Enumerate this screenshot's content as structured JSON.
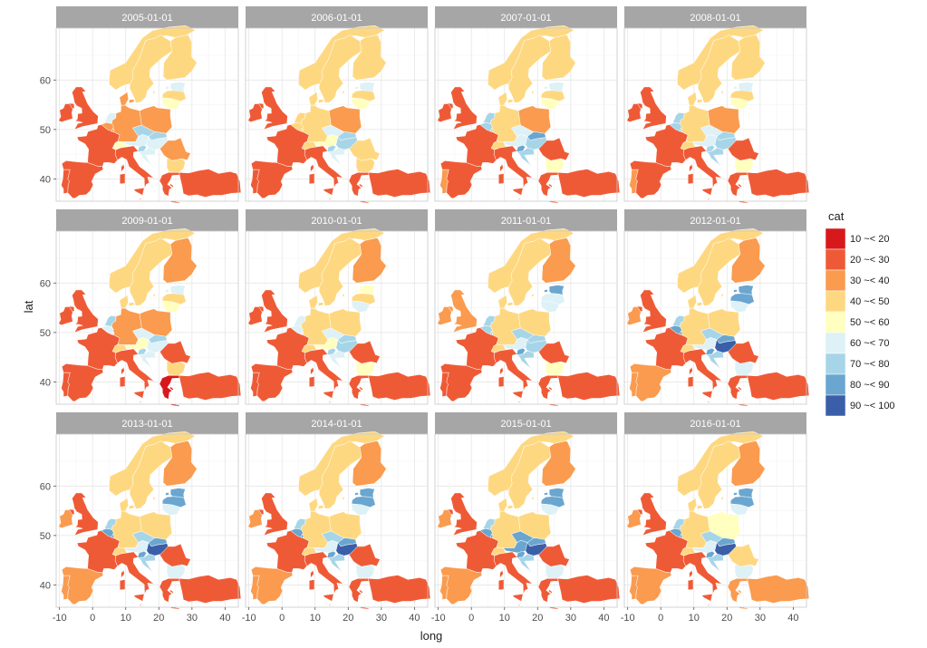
{
  "chart_data": {
    "type": "choropleth-facet",
    "xlabel": "long",
    "ylabel": "lat",
    "x_ticks": [
      -10,
      0,
      10,
      20,
      30,
      40
    ],
    "y_ticks": [
      40,
      50,
      60
    ],
    "xlim": [
      -11,
      44
    ],
    "ylim": [
      35.5,
      70.5
    ],
    "legend": {
      "title": "cat",
      "placement": "right",
      "items": [
        {
          "label": "10 ~< 20",
          "color": "#d7191c"
        },
        {
          "label": "20 ~< 30",
          "color": "#ef5a36"
        },
        {
          "label": "30 ~< 40",
          "color": "#fa9b4f"
        },
        {
          "label": "40 ~< 50",
          "color": "#fed881"
        },
        {
          "label": "50 ~< 60",
          "color": "#ffffbf"
        },
        {
          "label": "60 ~< 70",
          "color": "#ddf1f7"
        },
        {
          "label": "70 ~< 80",
          "color": "#a6d5e8"
        },
        {
          "label": "80 ~< 90",
          "color": "#6aa6cf"
        },
        {
          "label": "90 ~< 100",
          "color": "#3a5fa8"
        }
      ]
    },
    "countries": [
      "UK",
      "IE",
      "PT",
      "ES",
      "FR",
      "BE",
      "NL",
      "LU",
      "DE",
      "CH",
      "AT",
      "IT",
      "SI",
      "HR",
      "CZ",
      "SK",
      "HU",
      "PL",
      "DK",
      "NO",
      "SE",
      "FI",
      "EE",
      "LV",
      "LT",
      "RO",
      "BG",
      "GR",
      "TR",
      "MT"
    ],
    "panels": [
      {
        "label": "2005-01-01",
        "cat": {
          "UK": "20 ~< 30",
          "IE": "20 ~< 30",
          "PT": "20 ~< 30",
          "ES": "20 ~< 30",
          "FR": "20 ~< 30",
          "BE": "30 ~< 40",
          "NL": "60 ~< 70",
          "LU": "30 ~< 40",
          "DE": "30 ~< 40",
          "CH": "50 ~< 60",
          "AT": "60 ~< 70",
          "IT": "20 ~< 30",
          "SI": "70 ~< 80",
          "HR": "60 ~< 70",
          "CZ": "70 ~< 80",
          "SK": "70 ~< 80",
          "HU": "60 ~< 70",
          "PL": "30 ~< 40",
          "DK": "30 ~< 40",
          "NO": "40 ~< 50",
          "SE": "40 ~< 50",
          "FI": "40 ~< 50",
          "EE": "60 ~< 70",
          "LV": "40 ~< 50",
          "LT": "50 ~< 60",
          "RO": "30 ~< 40",
          "BG": "40 ~< 50",
          "GR": "20 ~< 30",
          "TR": "20 ~< 30",
          "MT": "20 ~< 30"
        }
      },
      {
        "label": "2006-01-01",
        "cat": {
          "UK": "20 ~< 30",
          "IE": "20 ~< 30",
          "PT": "20 ~< 30",
          "ES": "20 ~< 30",
          "FR": "20 ~< 30",
          "BE": "40 ~< 50",
          "NL": "40 ~< 50",
          "LU": "40 ~< 50",
          "DE": "40 ~< 50",
          "CH": "40 ~< 50",
          "AT": "50 ~< 60",
          "IT": "20 ~< 30",
          "SI": "70 ~< 80",
          "HR": "60 ~< 70",
          "CZ": "60 ~< 70",
          "SK": "70 ~< 80",
          "HU": "70 ~< 80",
          "PL": "30 ~< 40",
          "DK": "40 ~< 50",
          "NO": "40 ~< 50",
          "SE": "40 ~< 50",
          "FI": "40 ~< 50",
          "EE": "60 ~< 70",
          "LV": "40 ~< 50",
          "LT": "50 ~< 60",
          "RO": "40 ~< 50",
          "BG": "40 ~< 50",
          "GR": "20 ~< 30",
          "TR": "20 ~< 30",
          "MT": "20 ~< 30"
        }
      },
      {
        "label": "2007-01-01",
        "cat": {
          "UK": "20 ~< 30",
          "IE": "20 ~< 30",
          "PT": "30 ~< 40",
          "ES": "20 ~< 30",
          "FR": "20 ~< 30",
          "BE": "70 ~< 80",
          "NL": "70 ~< 80",
          "LU": "70 ~< 80",
          "DE": "40 ~< 50",
          "CH": "40 ~< 50",
          "AT": "60 ~< 70",
          "IT": "20 ~< 30",
          "SI": "80 ~< 90",
          "HR": "70 ~< 80",
          "CZ": "60 ~< 70",
          "SK": "80 ~< 90",
          "HU": "70 ~< 80",
          "PL": "30 ~< 40",
          "DK": "40 ~< 50",
          "NO": "40 ~< 50",
          "SE": "40 ~< 50",
          "FI": "40 ~< 50",
          "EE": "60 ~< 70",
          "LV": "40 ~< 50",
          "LT": "50 ~< 60",
          "RO": "20 ~< 30",
          "BG": "50 ~< 60",
          "GR": "20 ~< 30",
          "TR": "20 ~< 30",
          "MT": "20 ~< 30"
        }
      },
      {
        "label": "2008-01-01",
        "cat": {
          "UK": "20 ~< 30",
          "IE": "20 ~< 30",
          "PT": "30 ~< 40",
          "ES": "20 ~< 30",
          "FR": "20 ~< 30",
          "BE": "70 ~< 80",
          "NL": "70 ~< 80",
          "LU": "70 ~< 80",
          "DE": "40 ~< 50",
          "CH": "40 ~< 50",
          "AT": "60 ~< 70",
          "IT": "20 ~< 30",
          "SI": "70 ~< 80",
          "HR": "70 ~< 80",
          "CZ": "60 ~< 70",
          "SK": "70 ~< 80",
          "HU": "70 ~< 80",
          "PL": "30 ~< 40",
          "DK": "40 ~< 50",
          "NO": "40 ~< 50",
          "SE": "40 ~< 50",
          "FI": "40 ~< 50",
          "EE": "60 ~< 70",
          "LV": "40 ~< 50",
          "LT": "50 ~< 60",
          "RO": "20 ~< 30",
          "BG": "50 ~< 60",
          "GR": "20 ~< 30",
          "TR": "20 ~< 30",
          "MT": "20 ~< 30"
        }
      },
      {
        "label": "2009-01-01",
        "cat": {
          "UK": "20 ~< 30",
          "IE": "20 ~< 30",
          "PT": "20 ~< 30",
          "ES": "20 ~< 30",
          "FR": "20 ~< 30",
          "BE": "60 ~< 70",
          "NL": "70 ~< 80",
          "LU": "60 ~< 70",
          "DE": "30 ~< 40",
          "CH": "40 ~< 50",
          "AT": "50 ~< 60",
          "IT": "20 ~< 30",
          "SI": "70 ~< 80",
          "HR": "60 ~< 70",
          "CZ": "60 ~< 70",
          "SK": "70 ~< 80",
          "HU": "60 ~< 70",
          "PL": "30 ~< 40",
          "DK": "40 ~< 50",
          "NO": "40 ~< 50",
          "SE": "40 ~< 50",
          "FI": "30 ~< 40",
          "EE": "60 ~< 70",
          "LV": "40 ~< 50",
          "LT": "50 ~< 60",
          "RO": "20 ~< 30",
          "BG": "40 ~< 50",
          "GR": "10 ~< 20",
          "TR": "20 ~< 30",
          "MT": "20 ~< 30"
        }
      },
      {
        "label": "2010-01-01",
        "cat": {
          "UK": "20 ~< 30",
          "IE": "20 ~< 30",
          "PT": "20 ~< 30",
          "ES": "20 ~< 30",
          "FR": "20 ~< 30",
          "BE": "60 ~< 70",
          "NL": "60 ~< 70",
          "LU": "60 ~< 70",
          "DE": "40 ~< 50",
          "CH": "40 ~< 50",
          "AT": "50 ~< 60",
          "IT": "20 ~< 30",
          "SI": "70 ~< 80",
          "HR": "60 ~< 70",
          "CZ": "60 ~< 70",
          "SK": "70 ~< 80",
          "HU": "70 ~< 80",
          "PL": "40 ~< 50",
          "DK": "40 ~< 50",
          "NO": "40 ~< 50",
          "SE": "40 ~< 50",
          "FI": "30 ~< 40",
          "EE": "50 ~< 60",
          "LV": "40 ~< 50",
          "LT": "60 ~< 70",
          "RO": "20 ~< 30",
          "BG": "50 ~< 60",
          "GR": "20 ~< 30",
          "TR": "20 ~< 30",
          "MT": "20 ~< 30"
        }
      },
      {
        "label": "2011-01-01",
        "cat": {
          "UK": "30 ~< 40",
          "IE": "30 ~< 40",
          "PT": "20 ~< 30",
          "ES": "20 ~< 30",
          "FR": "20 ~< 30",
          "BE": "70 ~< 80",
          "NL": "70 ~< 80",
          "LU": "70 ~< 80",
          "DE": "40 ~< 50",
          "CH": "40 ~< 50",
          "AT": "60 ~< 70",
          "IT": "20 ~< 30",
          "SI": "80 ~< 90",
          "HR": "70 ~< 80",
          "CZ": "70 ~< 80",
          "SK": "70 ~< 80",
          "HU": "70 ~< 80",
          "PL": "40 ~< 50",
          "DK": "40 ~< 50",
          "NO": "40 ~< 50",
          "SE": "40 ~< 50",
          "FI": "30 ~< 40",
          "EE": "80 ~< 90",
          "LV": "60 ~< 70",
          "LT": "60 ~< 70",
          "RO": "20 ~< 30",
          "BG": "50 ~< 60",
          "GR": "20 ~< 30",
          "TR": "20 ~< 30",
          "MT": "20 ~< 30"
        }
      },
      {
        "label": "2012-01-01",
        "cat": {
          "UK": "20 ~< 30",
          "IE": "30 ~< 40",
          "PT": "30 ~< 40",
          "ES": "30 ~< 40",
          "FR": "20 ~< 30",
          "BE": "80 ~< 90",
          "NL": "70 ~< 80",
          "LU": "80 ~< 90",
          "DE": "40 ~< 50",
          "CH": "40 ~< 50",
          "AT": "60 ~< 70",
          "IT": "20 ~< 30",
          "SI": "80 ~< 90",
          "HR": "70 ~< 80",
          "CZ": "70 ~< 80",
          "SK": "80 ~< 90",
          "HU": "90 ~< 100",
          "PL": "40 ~< 50",
          "DK": "40 ~< 50",
          "NO": "40 ~< 50",
          "SE": "40 ~< 50",
          "FI": "30 ~< 40",
          "EE": "80 ~< 90",
          "LV": "80 ~< 90",
          "LT": "60 ~< 70",
          "RO": "20 ~< 30",
          "BG": "60 ~< 70",
          "GR": "20 ~< 30",
          "TR": "20 ~< 30",
          "MT": "20 ~< 30"
        }
      },
      {
        "label": "2013-01-01",
        "cat": {
          "UK": "20 ~< 30",
          "IE": "30 ~< 40",
          "PT": "30 ~< 40",
          "ES": "30 ~< 40",
          "FR": "20 ~< 30",
          "BE": "80 ~< 90",
          "NL": "70 ~< 80",
          "LU": "80 ~< 90",
          "DE": "40 ~< 50",
          "CH": "40 ~< 50",
          "AT": "60 ~< 70",
          "IT": "20 ~< 30",
          "SI": "80 ~< 90",
          "HR": "70 ~< 80",
          "CZ": "70 ~< 80",
          "SK": "80 ~< 90",
          "HU": "90 ~< 100",
          "PL": "40 ~< 50",
          "DK": "40 ~< 50",
          "NO": "40 ~< 50",
          "SE": "40 ~< 50",
          "FI": "30 ~< 40",
          "EE": "80 ~< 90",
          "LV": "80 ~< 90",
          "LT": "60 ~< 70",
          "RO": "20 ~< 30",
          "BG": "60 ~< 70",
          "GR": "20 ~< 30",
          "TR": "20 ~< 30",
          "MT": "20 ~< 30"
        }
      },
      {
        "label": "2014-01-01",
        "cat": {
          "UK": "20 ~< 30",
          "IE": "30 ~< 40",
          "PT": "30 ~< 40",
          "ES": "30 ~< 40",
          "FR": "20 ~< 30",
          "BE": "80 ~< 90",
          "NL": "70 ~< 80",
          "LU": "80 ~< 90",
          "DE": "40 ~< 50",
          "CH": "40 ~< 50",
          "AT": "60 ~< 70",
          "IT": "20 ~< 30",
          "SI": "80 ~< 90",
          "HR": "70 ~< 80",
          "CZ": "70 ~< 80",
          "SK": "80 ~< 90",
          "HU": "90 ~< 100",
          "PL": "40 ~< 50",
          "DK": "40 ~< 50",
          "NO": "40 ~< 50",
          "SE": "40 ~< 50",
          "FI": "30 ~< 40",
          "EE": "80 ~< 90",
          "LV": "80 ~< 90",
          "LT": "60 ~< 70",
          "RO": "20 ~< 30",
          "BG": "60 ~< 70",
          "GR": "20 ~< 30",
          "TR": "20 ~< 30",
          "MT": "20 ~< 30"
        }
      },
      {
        "label": "2015-01-01",
        "cat": {
          "UK": "20 ~< 30",
          "IE": "30 ~< 40",
          "PT": "30 ~< 40",
          "ES": "30 ~< 40",
          "FR": "20 ~< 30",
          "BE": "80 ~< 90",
          "NL": "70 ~< 80",
          "LU": "80 ~< 90",
          "DE": "40 ~< 50",
          "CH": "40 ~< 50",
          "AT": "80 ~< 90",
          "IT": "20 ~< 30",
          "SI": "80 ~< 90",
          "HR": "70 ~< 80",
          "CZ": "80 ~< 90",
          "SK": "80 ~< 90",
          "HU": "90 ~< 100",
          "PL": "40 ~< 50",
          "DK": "40 ~< 50",
          "NO": "40 ~< 50",
          "SE": "40 ~< 50",
          "FI": "30 ~< 40",
          "EE": "80 ~< 90",
          "LV": "80 ~< 90",
          "LT": "60 ~< 70",
          "RO": "20 ~< 30",
          "BG": "60 ~< 70",
          "GR": "20 ~< 30",
          "TR": "20 ~< 30",
          "MT": "20 ~< 30"
        }
      },
      {
        "label": "2016-01-01",
        "cat": {
          "UK": "20 ~< 30",
          "IE": "30 ~< 40",
          "PT": "30 ~< 40",
          "ES": "30 ~< 40",
          "FR": "20 ~< 30",
          "BE": "80 ~< 90",
          "NL": "70 ~< 80",
          "LU": "80 ~< 90",
          "DE": "40 ~< 50",
          "CH": "40 ~< 50",
          "AT": "60 ~< 70",
          "IT": "20 ~< 30",
          "SI": "80 ~< 90",
          "HR": "70 ~< 80",
          "CZ": "70 ~< 80",
          "SK": "80 ~< 90",
          "HU": "90 ~< 100",
          "PL": "50 ~< 60",
          "DK": "40 ~< 50",
          "NO": "40 ~< 50",
          "SE": "40 ~< 50",
          "FI": "30 ~< 40",
          "EE": "80 ~< 90",
          "LV": "80 ~< 90",
          "LT": "60 ~< 70",
          "RO": "40 ~< 50",
          "BG": "60 ~< 70",
          "GR": "30 ~< 40",
          "TR": "30 ~< 40",
          "MT": "20 ~< 30"
        }
      }
    ]
  }
}
